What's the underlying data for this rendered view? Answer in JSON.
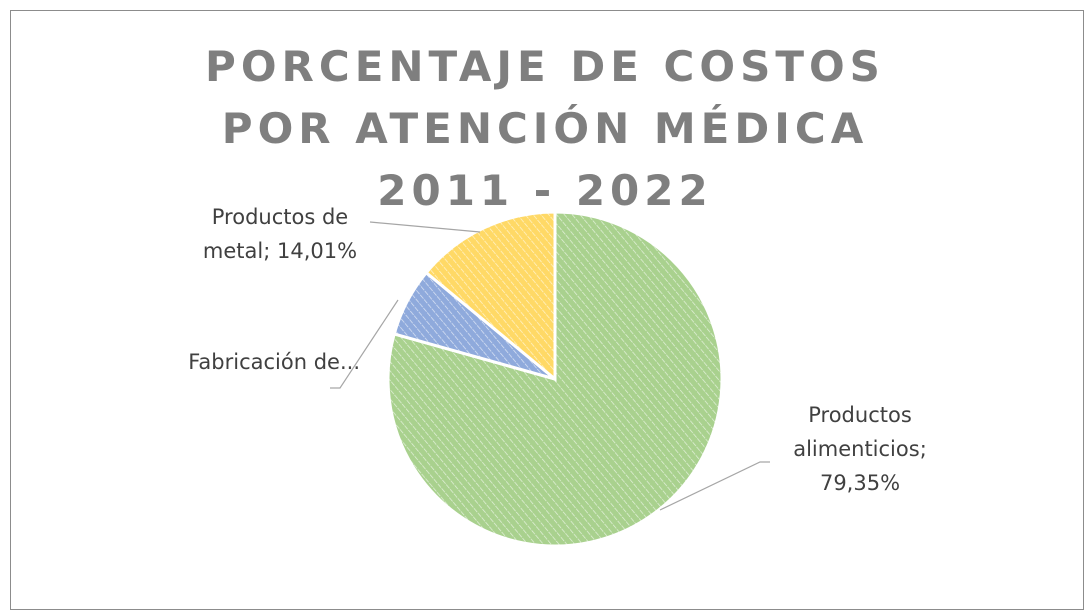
{
  "chart_data": {
    "type": "pie",
    "title": "PORCENTAJE DE COSTOS POR ATENCIÓN MÉDICA 2011 - 2022",
    "categories": [
      "Productos alimenticios",
      "Fabricación de...",
      "Productos de metal"
    ],
    "values": [
      79.35,
      6.64,
      14.01
    ],
    "value_labels": [
      "79,35%",
      null,
      "14,01%"
    ],
    "label_separator": ";",
    "colors": [
      "#a9d18e",
      "#8faadc",
      "#ffd966"
    ]
  }
}
